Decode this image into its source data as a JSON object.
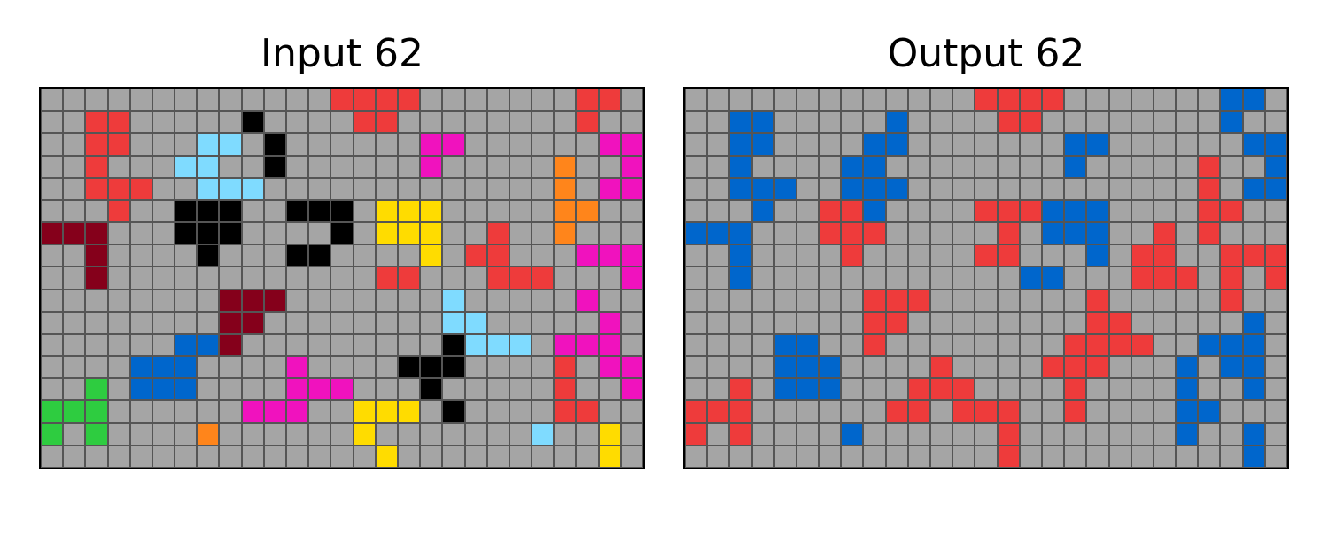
{
  "colors": {
    "0": "#000000",
    "1": "#0066CC",
    "2": "#EE3B3B",
    "3": "#2ECC40",
    "4": "#FFDC00",
    "5": "#A5A5A5",
    "6": "#F012BE",
    "7": "#FF851B",
    "8": "#7FDBFF",
    "9": "#85001B"
  },
  "panels": [
    {
      "title": "Input 62",
      "grid": [
        "555555555555522225555555225",
        "552255555055552255555555255",
        "552255588505555556655555566",
        "552555885505555556555557556",
        "552225588855555555555557566",
        "555255000550005444555557755",
        "999555000555505444552557555",
        "559555505550055554522555666",
        "559555555555555225552225556",
        "555555559995555555855555655",
        "555555559955555555885555565",
        "555555119555555555088856665",
        "555511155556555500055552566",
        "553511155556665550555552556",
        "333555555666554445055552255",
        "353555575555554555555585545",
        "555555555555555455555555545"
      ]
    },
    {
      "title": "Output 62",
      "grid": [
        "555555555555522225555555115",
        "551155555155552255555555155",
        "551155551155555551155555511",
        "551555511555555551555552551",
        "551115511155555555555552511",
        "555155221555522211155552255",
        "111555222555552511155252555",
        "551555525555522555152255222",
        "551555555555555115552225252",
        "555555552225555555255555255",
        "555555552255555555225555515",
        "555511552555555552222551115",
        "555511155552555522255515115",
        "552511155522255552555515515",
        "222555555225222552555511555",
        "252555515555552555555515515",
        "555555555555552555555555515"
      ]
    }
  ]
}
